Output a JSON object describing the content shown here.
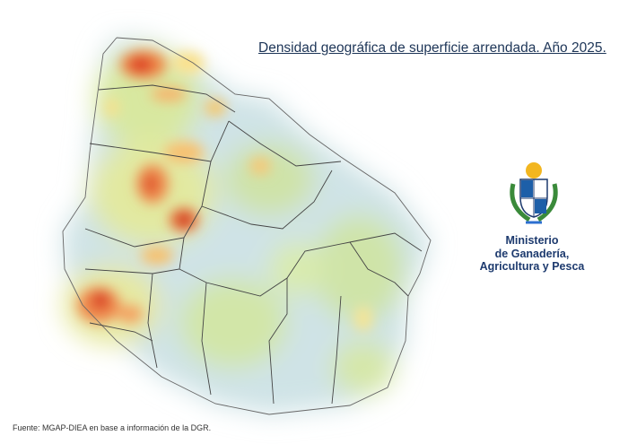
{
  "header": {
    "title": "Densidad geográfica de superficie arrendada. Año 2025."
  },
  "logo": {
    "lines": [
      "Ministerio",
      "de Ganadería,",
      "Agricultura y Pesca"
    ]
  },
  "footer": {
    "source": "Fuente: MGAP-DIEA en base a información de la DGR."
  }
}
